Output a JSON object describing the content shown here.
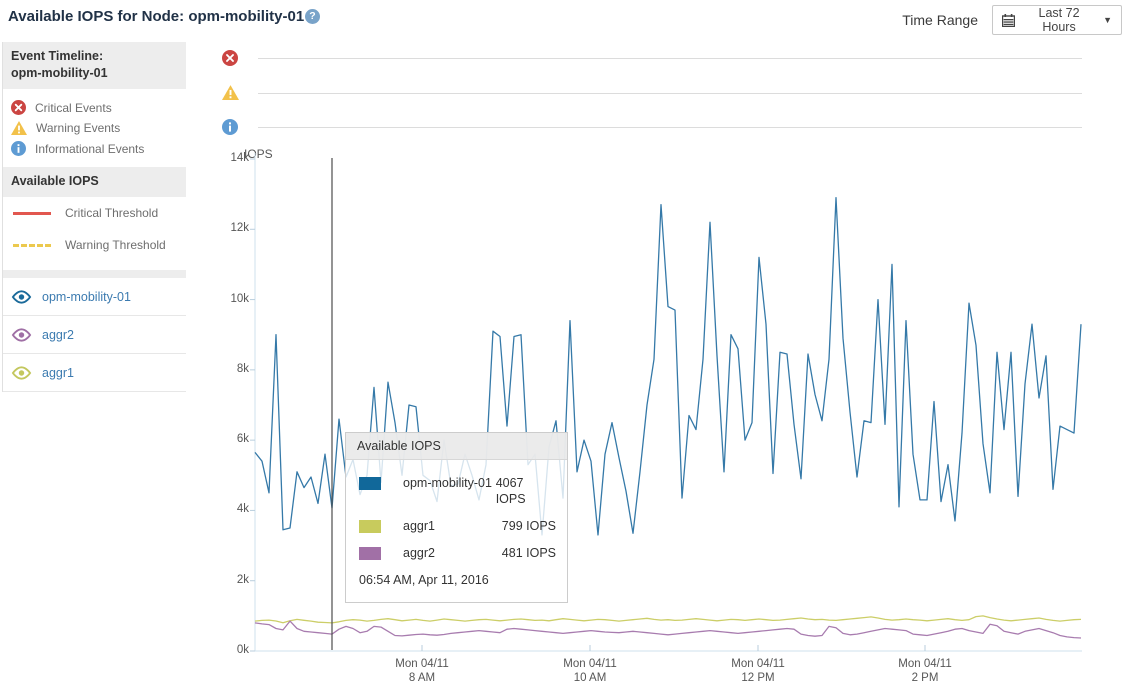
{
  "header": {
    "title": "Available IOPS for Node: opm-mobility-01",
    "time_range_label": "Time Range",
    "time_range_value": "Last 72 Hours"
  },
  "sidebar": {
    "event_timeline_header_line1": "Event Timeline:",
    "event_timeline_header_line2": "opm-mobility-01",
    "event_legend": [
      {
        "label": "Critical Events",
        "icon": "critical-circle-x-icon",
        "color": "#cb4542"
      },
      {
        "label": "Warning Events",
        "icon": "warning-triangle-icon",
        "color": "#f2c14a"
      },
      {
        "label": "Informational Events",
        "icon": "info-circle-icon",
        "color": "#5e9bd3"
      }
    ],
    "available_iops_header": "Available IOPS",
    "thresholds": [
      {
        "label": "Critical Threshold",
        "style": "solid",
        "color": "#e2574f"
      },
      {
        "label": "Warning Threshold",
        "style": "dashed",
        "color": "#ecc94e"
      }
    ],
    "series_toggles": [
      {
        "label": "opm-mobility-01",
        "color": "#1a6a9a"
      },
      {
        "label": "aggr2",
        "color": "#9f6fa5"
      },
      {
        "label": "aggr1",
        "color": "#c3c75e"
      }
    ]
  },
  "tooltip": {
    "title": "Available IOPS",
    "rows": [
      {
        "name": "opm-mobility-01",
        "value": "4067 IOPS",
        "color": "#11689a"
      },
      {
        "name": "aggr1",
        "value": "799 IOPS",
        "color": "#c8cb5d"
      },
      {
        "name": "aggr2",
        "value": "481 IOPS",
        "color": "#a170a6"
      }
    ],
    "timestamp": "06:54 AM, Apr 11, 2016"
  },
  "chart_data": {
    "type": "line",
    "title": "Available IOPS for Node: opm-mobility-01",
    "xlabel": "",
    "ylabel": "IOPS",
    "ylim": [
      0,
      14000
    ],
    "yticks": [
      "0k",
      "2k",
      "4k",
      "6k",
      "8k",
      "10k",
      "12k",
      "14k"
    ],
    "xticks": [
      {
        "line1": "Mon 04/11",
        "line2": "8 AM"
      },
      {
        "line1": "Mon 04/11",
        "line2": "10 AM"
      },
      {
        "line1": "Mon 04/11",
        "line2": "12 PM"
      },
      {
        "line1": "Mon 04/11",
        "line2": "2 PM"
      }
    ],
    "x_start_time": "06:00 AM, Apr 11, 2016",
    "interval_minutes": 5,
    "grid": false,
    "legend_position": "none",
    "cursor": {
      "index": 11,
      "timestamp": "06:54 AM, Apr 11, 2016"
    },
    "series": [
      {
        "name": "opm-mobility-01",
        "color": "#3579a8",
        "values": [
          5650,
          5400,
          4500,
          9000,
          3450,
          3500,
          5100,
          4650,
          4950,
          4200,
          5600,
          4067,
          6600,
          4950,
          5450,
          4450,
          5000,
          7500,
          4800,
          7650,
          6500,
          5000,
          7000,
          6950,
          5000,
          4850,
          4250,
          6000,
          4700,
          4750,
          5600,
          5000,
          4300,
          5300,
          9100,
          8950,
          6400,
          8950,
          9000,
          5300,
          5600,
          3300,
          5800,
          6550,
          4350,
          9400,
          5100,
          6000,
          5400,
          3300,
          5600,
          6500,
          5500,
          4550,
          3350,
          5100,
          7000,
          8300,
          12700,
          9800,
          9700,
          4350,
          6700,
          6300,
          8300,
          12200,
          8400,
          5100,
          9000,
          8600,
          6000,
          6500,
          11200,
          9300,
          5050,
          8500,
          8450,
          6450,
          4900,
          8450,
          7300,
          6550,
          8300,
          12900,
          8900,
          6800,
          4950,
          6550,
          6500,
          10000,
          6450,
          11000,
          4100,
          9400,
          5600,
          4300,
          4300,
          7100,
          4250,
          5300,
          3700,
          6200,
          9900,
          8700,
          5900,
          4500,
          8500,
          6300,
          8500,
          4400,
          7600,
          9300,
          7200,
          8400,
          4600,
          6400,
          6300,
          6200,
          9300
        ]
      },
      {
        "name": "aggr1",
        "color": "#ccce68",
        "values": [
          850,
          870,
          880,
          855,
          805,
          860,
          900,
          875,
          850,
          820,
          810,
          799,
          830,
          870,
          890,
          880,
          850,
          870,
          900,
          920,
          890,
          860,
          880,
          900,
          870,
          850,
          880,
          910,
          890,
          870,
          850,
          870,
          890,
          900,
          880,
          860,
          880,
          900,
          910,
          890,
          870,
          880,
          860,
          890,
          920,
          900,
          880,
          860,
          880,
          900,
          890,
          870,
          850,
          870,
          890,
          910,
          930,
          900,
          880,
          890,
          870,
          880,
          900,
          920,
          900,
          880,
          860,
          880,
          900,
          890,
          870,
          890,
          910,
          890,
          870,
          880,
          900,
          920,
          940,
          910,
          890,
          900,
          880,
          870,
          890,
          910,
          930,
          950,
          970,
          940,
          900,
          880,
          890,
          910,
          890,
          880,
          860,
          880,
          900,
          920,
          890,
          870,
          890,
          980,
          1000,
          950,
          910,
          880,
          860,
          880,
          900,
          920,
          940,
          900,
          870,
          850,
          870,
          890,
          900
        ]
      },
      {
        "name": "aggr2",
        "color": "#a87caf",
        "values": [
          800,
          770,
          750,
          640,
          600,
          850,
          640,
          560,
          540,
          520,
          500,
          481,
          620,
          700,
          640,
          520,
          560,
          700,
          680,
          560,
          440,
          430,
          450,
          470,
          480,
          460,
          450,
          470,
          500,
          520,
          540,
          560,
          580,
          560,
          540,
          520,
          620,
          640,
          620,
          600,
          580,
          560,
          540,
          520,
          500,
          520,
          540,
          560,
          580,
          560,
          540,
          530,
          520,
          540,
          560,
          540,
          520,
          500,
          480,
          460,
          480,
          500,
          520,
          540,
          560,
          580,
          560,
          540,
          520,
          500,
          520,
          540,
          560,
          580,
          600,
          620,
          640,
          620,
          480,
          440,
          420,
          440,
          700,
          660,
          500,
          460,
          480,
          520,
          560,
          600,
          640,
          620,
          600,
          580,
          480,
          460,
          440,
          480,
          520,
          560,
          620,
          640,
          580,
          540,
          500,
          760,
          720,
          560,
          520,
          480,
          560,
          600,
          640,
          580,
          520,
          440,
          400,
          380,
          370
        ]
      }
    ]
  }
}
